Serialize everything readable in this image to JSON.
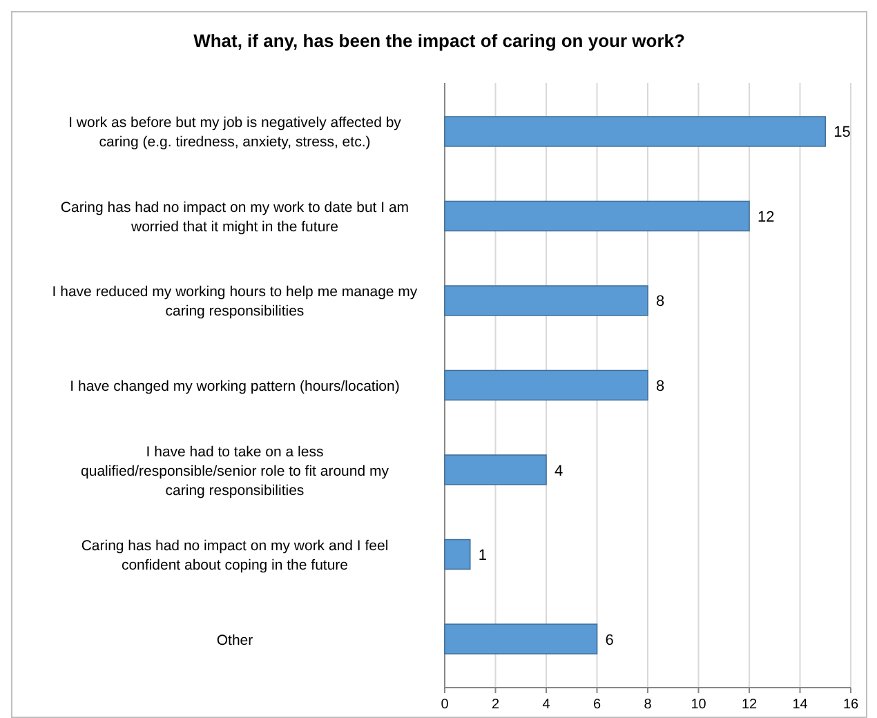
{
  "chart_data": {
    "type": "bar",
    "orientation": "horizontal",
    "title": "What, if any, has been the impact of caring on your work?",
    "categories": [
      "I work as before but my job is negatively affected by caring (e.g. tiredness, anxiety, stress, etc.)",
      "Caring has had no impact on my work to date but I am worried that it might in the future",
      "I have reduced my working hours to help me manage my caring responsibilities",
      "I have changed my working pattern (hours/location)",
      "I have had to take on a less qualified/responsible/senior role to fit around my caring responsibilities",
      "Caring has had no impact on my work and I feel confident about coping in the future",
      "Other"
    ],
    "values": [
      15,
      12,
      8,
      8,
      4,
      1,
      6
    ],
    "color": "#5b9bd5",
    "xlim": [
      0,
      16
    ],
    "xticks": [
      0,
      2,
      4,
      6,
      8,
      10,
      12,
      14,
      16
    ],
    "grid": "x",
    "data_labels": true
  }
}
